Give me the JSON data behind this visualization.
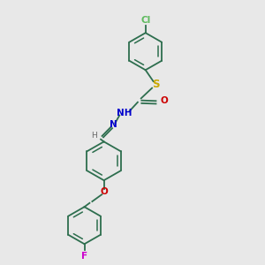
{
  "bg_color": "#e8e8e8",
  "bond_color": "#2d6e4e",
  "cl_color": "#5dba5d",
  "s_color": "#c8a800",
  "o_color": "#cc0000",
  "n_color": "#0000cc",
  "f_color": "#cc00cc",
  "h_color": "#666666",
  "font_size": 7.5,
  "figsize": [
    3.0,
    3.0
  ],
  "dpi": 100,
  "xlim": [
    0,
    10
  ],
  "ylim": [
    0,
    10
  ]
}
